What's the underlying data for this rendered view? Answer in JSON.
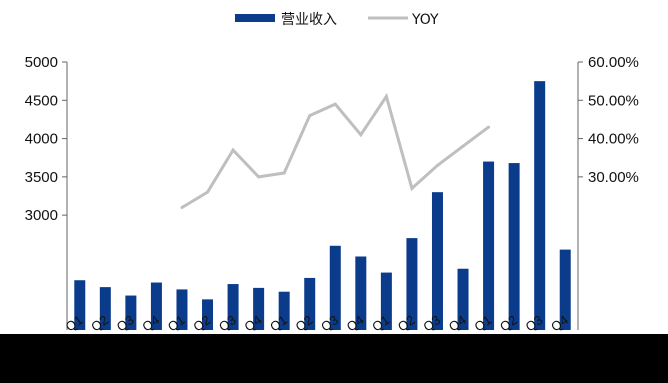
{
  "chart_data": {
    "type": "bar",
    "legend": {
      "placement": "top-center",
      "items": [
        {
          "label": "营业收入",
          "color": "#0b3c8c",
          "kind": "bar"
        },
        {
          "label": "YOY",
          "color": "#bfbfbf",
          "kind": "line"
        }
      ]
    },
    "y_left": {
      "ticks": [
        "5000",
        "4500",
        "4000",
        "3500",
        "3000"
      ],
      "range": [
        1500,
        5000
      ]
    },
    "y_right": {
      "ticks": [
        "60.00%",
        "50.00%",
        "40.00%",
        "30.00%"
      ],
      "range": [
        -10,
        60
      ]
    },
    "categories": [
      "Q1",
      "Q2",
      "Q3",
      "Q4",
      "Q1",
      "Q2",
      "Q3",
      "Q4",
      "Q1",
      "Q2",
      "Q3",
      "Q4",
      "Q1",
      "Q2",
      "Q3",
      "Q4",
      "Q1",
      "Q2",
      "Q3",
      "Q4"
    ],
    "series": [
      {
        "name": "营业收入",
        "axis": "left",
        "color": "#0b3c8c",
        "values": [
          2150,
          2060,
          1950,
          2120,
          2030,
          1900,
          2100,
          2050,
          2000,
          2180,
          2600,
          2460,
          2250,
          2700,
          3300,
          2300,
          3700,
          3680,
          4750,
          2550
        ]
      },
      {
        "name": "YOY",
        "axis": "right",
        "color": "#bfbfbf",
        "values": [
          null,
          null,
          null,
          null,
          22,
          26,
          37,
          30,
          31,
          46,
          49,
          41,
          51,
          27,
          33,
          38,
          43,
          null,
          null,
          null
        ]
      }
    ],
    "grid": false
  }
}
